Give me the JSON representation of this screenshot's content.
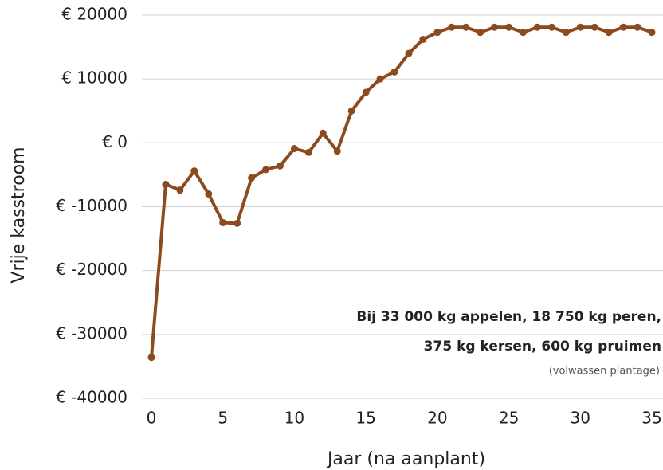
{
  "chart_data": {
    "type": "line",
    "x_label": "Jaar (na aanplant)",
    "y_label": "Vrije kasstroom",
    "annotations": [
      "Bij 33 000 kg appelen, 18 750 kg peren,",
      "375 kg kersen, 600 kg pruimen",
      "(volwassen plantage)"
    ],
    "x": [
      0,
      1,
      2,
      3,
      4,
      5,
      6,
      7,
      8,
      9,
      10,
      11,
      12,
      13,
      14,
      15,
      16,
      17,
      18,
      19,
      20,
      21,
      22,
      23,
      24,
      25,
      26,
      27,
      28,
      29,
      30,
      31,
      32,
      33,
      34,
      35
    ],
    "series": [
      {
        "name": "Vrije kasstroom",
        "color": "#8c4b1e",
        "values": [
          -33600,
          -6500,
          -7400,
          -4400,
          -8000,
          -12500,
          -12600,
          -5500,
          -4200,
          -3600,
          -900,
          -1500,
          1500,
          -1300,
          5000,
          7900,
          10000,
          11100,
          14000,
          16200,
          17300,
          18100,
          18100,
          17300,
          18100,
          18100,
          17300,
          18100,
          18100,
          17300,
          18100,
          18100,
          17300,
          18100,
          18100,
          17300
        ]
      }
    ],
    "xlim": [
      0,
      35
    ],
    "xticks": [
      0,
      5,
      10,
      15,
      20,
      25,
      30,
      35
    ],
    "ylim": [
      -40000,
      20000
    ],
    "yticks": [
      {
        "value": -40000,
        "label": "€ -40000"
      },
      {
        "value": -30000,
        "label": "€ -30000"
      },
      {
        "value": -20000,
        "label": "€ -20000"
      },
      {
        "value": -10000,
        "label": "€ -10000"
      },
      {
        "value": 0,
        "label": "€ 0"
      },
      {
        "value": 10000,
        "label": "€ 10000"
      },
      {
        "value": 20000,
        "label": "€ 20000"
      }
    ],
    "grid": true
  }
}
